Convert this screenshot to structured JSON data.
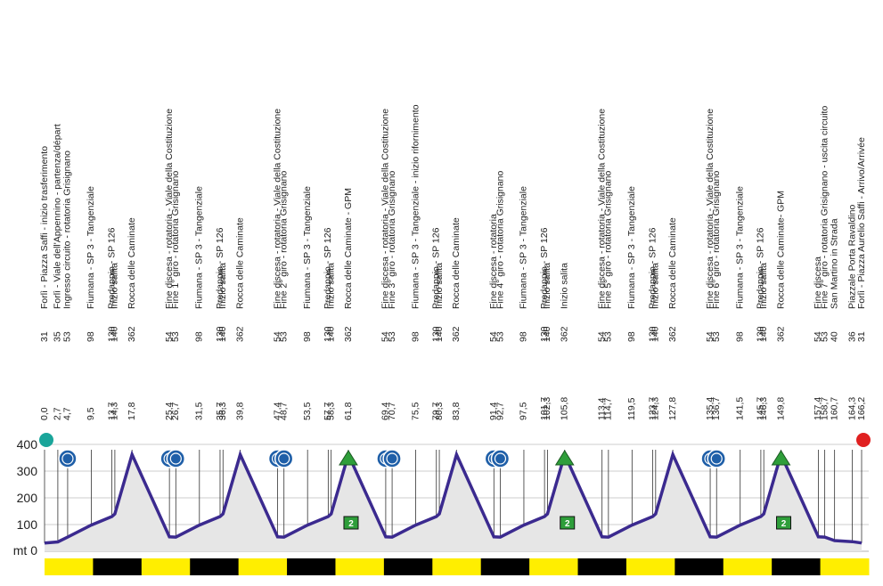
{
  "chart_data": {
    "type": "area",
    "title": "",
    "xlabel": "",
    "ylabel": "",
    "y_unit_label": "mt 0",
    "y_ticks": [
      100,
      200,
      300,
      400
    ],
    "ylim": [
      0,
      450
    ],
    "xlim": [
      0,
      166.2
    ],
    "colors": {
      "profile_line": "#3b2a8f",
      "profile_fill": "#e6e6e6",
      "start_marker": "#1aa59a",
      "finish_marker": "#e02020",
      "sprint_circle": "#1f5fa8",
      "gpm_triangle": "#2e9e3a",
      "km_band_yellow": "#ffee00",
      "km_band_black": "#000000",
      "highlight_green": "#2e9e7a",
      "highlight_red": "#d42020"
    },
    "points": [
      {
        "km": "0,0",
        "x": 0.0,
        "alt": "31",
        "y": 31,
        "name": "Forlì - Piazza Saffi - inizio trasferimento"
      },
      {
        "km": "2,7",
        "x": 2.7,
        "alt": "35",
        "y": 35,
        "name": "Forlì - Viale dell'Appennino - partenza/départ",
        "highlight": "start"
      },
      {
        "km": "4,7",
        "x": 4.7,
        "alt": "53",
        "y": 53,
        "name": "Ingresso circuito - rotatoria Grisignano"
      },
      {
        "km": "9,5",
        "x": 9.5,
        "alt": "98",
        "y": 98,
        "name": "Fiumana - SP 3 - Tangenziale"
      },
      {
        "km": "13,7",
        "x": 13.7,
        "alt": "130",
        "y": 130,
        "name": "Predappio - SP 126"
      },
      {
        "km": "14,3",
        "x": 14.3,
        "alt": "140",
        "y": 140,
        "name": "Inizio salita"
      },
      {
        "km": "17,8",
        "x": 17.8,
        "alt": "362",
        "y": 362,
        "name": "Rocca delle Caminate"
      },
      {
        "km": "25,4",
        "x": 25.4,
        "alt": "54",
        "y": 54,
        "name": "Fine discesa - rotatoria - Viale della Costituzione"
      },
      {
        "km": "26,7",
        "x": 26.7,
        "alt": "53",
        "y": 53,
        "name": "Fine 1° giro - rotatoria Grisignano"
      },
      {
        "km": "31,5",
        "x": 31.5,
        "alt": "98",
        "y": 98,
        "name": "Fiumana - SP 3 - Tangenziale"
      },
      {
        "km": "35,7",
        "x": 35.7,
        "alt": "130",
        "y": 130,
        "name": "Predappio - SP 126"
      },
      {
        "km": "36,3",
        "x": 36.3,
        "alt": "140",
        "y": 140,
        "name": "Inizio salita"
      },
      {
        "km": "39,8",
        "x": 39.8,
        "alt": "362",
        "y": 362,
        "name": "Rocca delle Caminate"
      },
      {
        "km": "47,4",
        "x": 47.4,
        "alt": "54",
        "y": 54,
        "name": "Fine discesa - rotatoria - Viale della Costituzione"
      },
      {
        "km": "48,7",
        "x": 48.7,
        "alt": "53",
        "y": 53,
        "name": "Fine 2° giro - rotatoria Grisignano"
      },
      {
        "km": "53,5",
        "x": 53.5,
        "alt": "98",
        "y": 98,
        "name": "Fiumana - SP 3 - Tangenziale"
      },
      {
        "km": "57,7",
        "x": 57.7,
        "alt": "130",
        "y": 130,
        "name": "Predappio - SP 126"
      },
      {
        "km": "58,3",
        "x": 58.3,
        "alt": "140",
        "y": 140,
        "name": "Inizio salita"
      },
      {
        "km": "61,8",
        "x": 61.8,
        "alt": "362",
        "y": 362,
        "name": "Rocca delle Caminate - GPM"
      },
      {
        "km": "69,4",
        "x": 69.4,
        "alt": "54",
        "y": 54,
        "name": "Fine discesa - rotatoria - Viale della Costituzione"
      },
      {
        "km": "70,7",
        "x": 70.7,
        "alt": "53",
        "y": 53,
        "name": "Fine 3° giro - rotatoria Grisignano"
      },
      {
        "km": "75,5",
        "x": 75.5,
        "alt": "98",
        "y": 98,
        "name": "Fiumana - SP 3 - Tangenziale - inizio rifornimento"
      },
      {
        "km": "79,7",
        "x": 79.7,
        "alt": "130",
        "y": 130,
        "name": "Predappio - SP 126"
      },
      {
        "km": "80,3",
        "x": 80.3,
        "alt": "140",
        "y": 140,
        "name": "Inizio salita"
      },
      {
        "km": "83,8",
        "x": 83.8,
        "alt": "362",
        "y": 362,
        "name": "Rocca delle Caminate"
      },
      {
        "km": "91,4",
        "x": 91.4,
        "alt": "54",
        "y": 54,
        "name": "Fine discesa - rotatoria"
      },
      {
        "km": "92,7",
        "x": 92.7,
        "alt": "53",
        "y": 53,
        "name": "Fine 4° giro - rotatoria Grisignano"
      },
      {
        "km": "97,5",
        "x": 97.5,
        "alt": "98",
        "y": 98,
        "name": "Fiumana - SP 3 - Tangenziale"
      },
      {
        "km": "101,7",
        "x": 101.7,
        "alt": "130",
        "y": 130,
        "name": "Predappio - SP 126"
      },
      {
        "km": "102,3",
        "x": 102.3,
        "alt": "140",
        "y": 140,
        "name": "Inizio salita"
      },
      {
        "km": "105,8",
        "x": 105.8,
        "alt": "362",
        "y": 362,
        "name": "Inizio salita"
      },
      {
        "km": "113,4",
        "x": 113.4,
        "alt": "54",
        "y": 54,
        "name": "Fine discesa - rotatoria - Viale della Costituzione"
      },
      {
        "km": "114,7",
        "x": 114.7,
        "alt": "53",
        "y": 53,
        "name": "Fine 5° giro - rotatoria Grisignano"
      },
      {
        "km": "119,5",
        "x": 119.5,
        "alt": "98",
        "y": 98,
        "name": "Fiumana - SP 3 - Tangenziale"
      },
      {
        "km": "123,7",
        "x": 123.7,
        "alt": "130",
        "y": 130,
        "name": "Predappio - SP 126"
      },
      {
        "km": "124,3",
        "x": 124.3,
        "alt": "140",
        "y": 140,
        "name": "Inizio salita"
      },
      {
        "km": "127,8",
        "x": 127.8,
        "alt": "362",
        "y": 362,
        "name": "Rocca delle Caminate"
      },
      {
        "km": "135,4",
        "x": 135.4,
        "alt": "54",
        "y": 54,
        "name": "Fine discesa - rotatoria - Viale della Costituzione"
      },
      {
        "km": "136,7",
        "x": 136.7,
        "alt": "53",
        "y": 53,
        "name": "Fine 6° giro - rotatoria Grisignano"
      },
      {
        "km": "141,5",
        "x": 141.5,
        "alt": "98",
        "y": 98,
        "name": "Fiumana - SP 3 - Tangenziale"
      },
      {
        "km": "145,7",
        "x": 145.7,
        "alt": "130",
        "y": 130,
        "name": "Predappio - SP 126"
      },
      {
        "km": "146,3",
        "x": 146.3,
        "alt": "140",
        "y": 140,
        "name": "Inizio salita"
      },
      {
        "km": "149,8",
        "x": 149.8,
        "alt": "362",
        "y": 362,
        "name": "Rocca delle Caminate- GPM"
      },
      {
        "km": "157,4",
        "x": 157.4,
        "alt": "54",
        "y": 54,
        "name": "Fine discesa"
      },
      {
        "km": "158,7",
        "x": 158.7,
        "alt": "53",
        "y": 53,
        "name": "Fine 7° giro - rotatoria Grisignano - uscita circuito"
      },
      {
        "km": "160,7",
        "x": 160.7,
        "alt": "40",
        "y": 40,
        "name": "San Martino in Strada"
      },
      {
        "km": "164,3",
        "x": 164.3,
        "alt": "36",
        "y": 36,
        "name": "Piazzale Porta Ravaldino"
      },
      {
        "km": "166,2",
        "x": 166.2,
        "alt": "31",
        "y": 31,
        "name": "Forlì - Piazza Aurelio Saffi - Arrivo/Arrivée",
        "highlight": "finish"
      }
    ],
    "sprint_circles_km": [
      4.7,
      25.4,
      26.7,
      47.4,
      48.7,
      69.4,
      70.7,
      91.4,
      92.7,
      135.4,
      136.7
    ],
    "gpm_triangles_km": [
      61.8,
      105.8,
      149.8
    ],
    "category_badges": [
      {
        "x": 61.8,
        "label": "2"
      },
      {
        "x": 105.8,
        "label": "2"
      },
      {
        "x": 149.8,
        "label": "2"
      }
    ],
    "km_band_segments": 17
  }
}
